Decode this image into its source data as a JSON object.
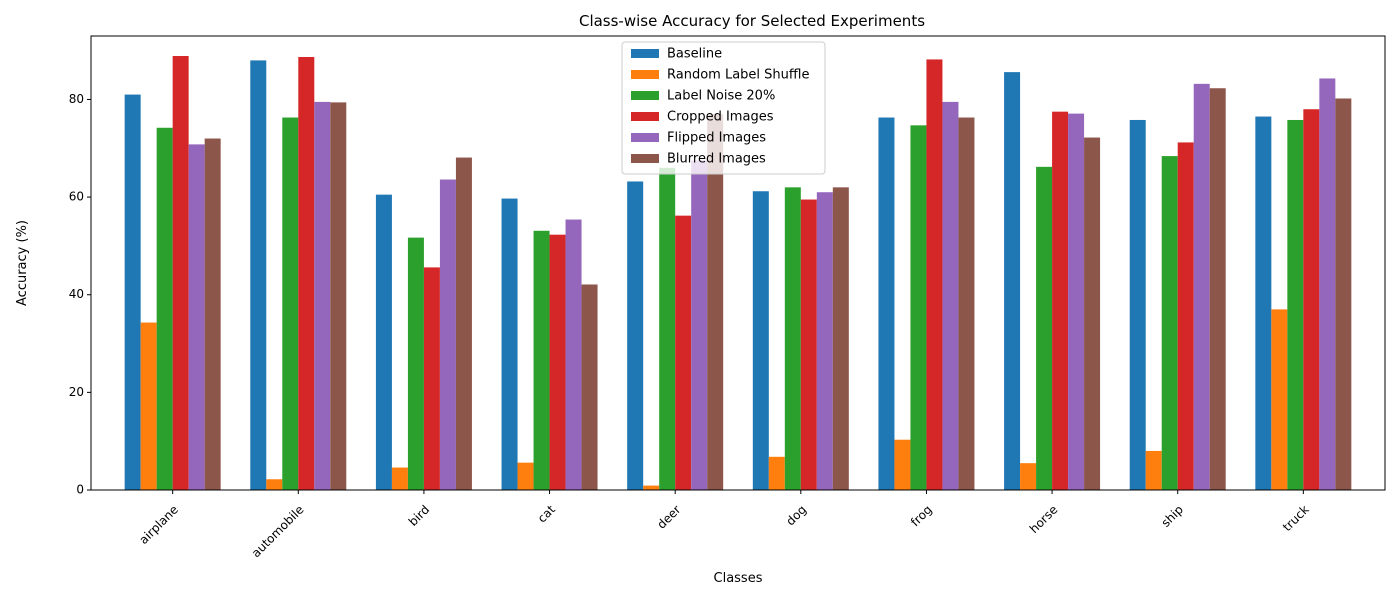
{
  "chart_data": {
    "type": "bar",
    "title": "Class-wise Accuracy for Selected Experiments",
    "xlabel": "Classes",
    "ylabel": "Accuracy (%)",
    "ylim": [
      0,
      93
    ],
    "yticks": [
      0,
      20,
      40,
      60,
      80
    ],
    "legend_position": "top-center",
    "categories": [
      "airplane",
      "automobile",
      "bird",
      "cat",
      "deer",
      "dog",
      "frog",
      "horse",
      "ship",
      "truck"
    ],
    "series": [
      {
        "name": "Baseline",
        "color": "#1f77b4",
        "values": [
          81.0,
          88.0,
          60.5,
          59.7,
          63.2,
          61.2,
          76.3,
          85.6,
          75.8,
          76.5
        ]
      },
      {
        "name": "Random Label Shuffle",
        "color": "#ff7f0e",
        "values": [
          34.3,
          2.2,
          4.6,
          5.6,
          0.9,
          6.8,
          10.3,
          5.5,
          8.0,
          37.0
        ]
      },
      {
        "name": "Label Noise 20%",
        "color": "#2ca02c",
        "values": [
          74.2,
          76.3,
          51.7,
          53.1,
          66.0,
          62.0,
          74.7,
          66.2,
          68.4,
          75.8
        ]
      },
      {
        "name": "Cropped Images",
        "color": "#d62728",
        "values": [
          88.9,
          88.7,
          45.6,
          52.3,
          56.2,
          59.5,
          88.2,
          77.5,
          71.2,
          78.0
        ]
      },
      {
        "name": "Flipped Images",
        "color": "#9467bd",
        "values": [
          70.8,
          79.5,
          63.6,
          55.4,
          67.5,
          61.0,
          79.5,
          77.1,
          83.2,
          84.3
        ]
      },
      {
        "name": "Blurred Images",
        "color": "#8c564b",
        "values": [
          72.0,
          79.4,
          68.1,
          42.1,
          77.0,
          62.0,
          76.3,
          72.2,
          82.3,
          80.2
        ]
      }
    ]
  }
}
